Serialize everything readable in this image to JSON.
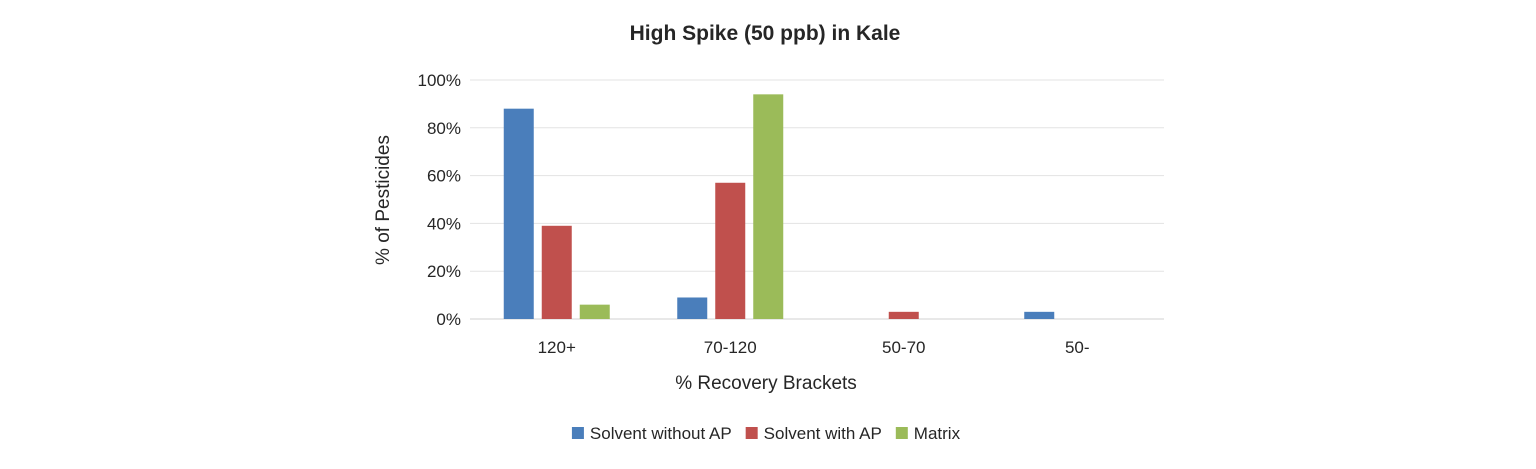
{
  "chart_data": {
    "type": "bar",
    "title": "High Spike (50 ppb) in Kale",
    "xlabel": "% Recovery Brackets",
    "ylabel": "% of Pesticides",
    "categories": [
      "120+",
      "70-120",
      "50-70",
      "50-"
    ],
    "ylim": [
      0,
      100
    ],
    "yticks": [
      0,
      20,
      40,
      60,
      80,
      100
    ],
    "ytick_labels": [
      "0%",
      "20%",
      "40%",
      "60%",
      "80%",
      "100%"
    ],
    "grid": true,
    "legend_position": "bottom",
    "series": [
      {
        "name": "Solvent without AP",
        "color": "#4a7ebb",
        "values": [
          88,
          9,
          0,
          3
        ]
      },
      {
        "name": "Solvent with AP",
        "color": "#c0504d",
        "values": [
          39,
          57,
          3,
          0
        ]
      },
      {
        "name": "Matrix",
        "color": "#9bbb59",
        "values": [
          6,
          94,
          0,
          0
        ]
      }
    ]
  }
}
